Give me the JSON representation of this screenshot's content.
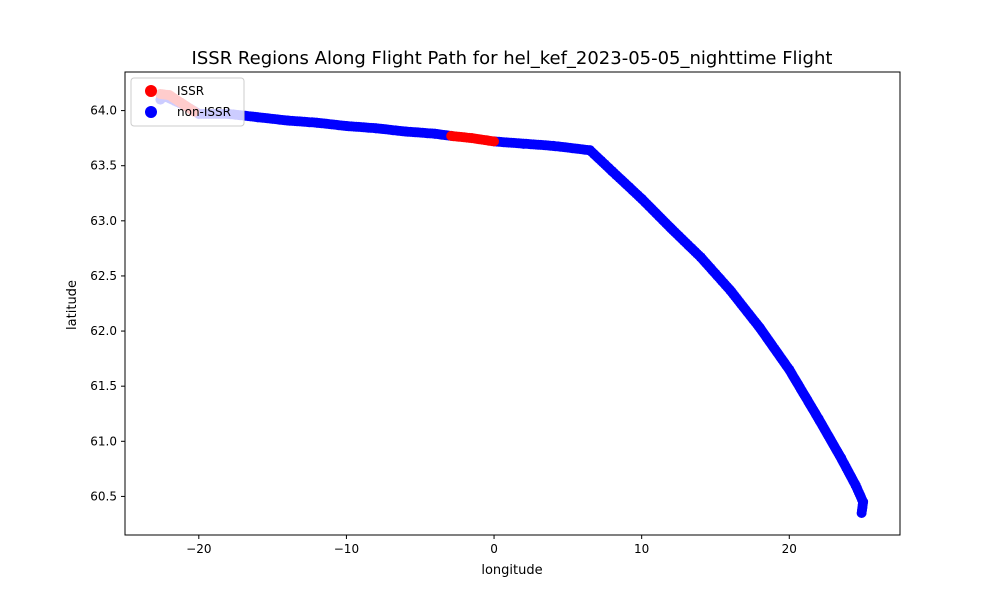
{
  "chart_data": {
    "type": "scatter",
    "title": "ISSR Regions Along Flight Path for hel_kef_2023-05-05_nighttime Flight",
    "xlabel": "longitude",
    "ylabel": "latitude",
    "xlim": [
      -25.0,
      27.5
    ],
    "ylim": [
      60.15,
      64.35
    ],
    "xticks": [
      -20,
      -10,
      0,
      10,
      20
    ],
    "yticks": [
      60.5,
      61.0,
      61.5,
      62.0,
      62.5,
      63.0,
      63.5,
      64.0
    ],
    "xtick_labels": [
      "−20",
      "−10",
      "0",
      "10",
      "20"
    ],
    "ytick_labels": [
      "60.5",
      "61.0",
      "61.5",
      "62.0",
      "62.5",
      "63.0",
      "63.5",
      "64.0"
    ],
    "grid": false,
    "legend_position": "top-left",
    "series": [
      {
        "name": "ISSR",
        "color": "#ff0000",
        "segments": [
          [
            [
              -22.6,
              64.15
            ],
            [
              -22.0,
              64.14
            ],
            [
              -21.2,
              64.07
            ],
            [
              -20.3,
              63.99
            ]
          ],
          [
            [
              -2.9,
              63.77
            ],
            [
              -1.5,
              63.75
            ],
            [
              0.0,
              63.72
            ]
          ]
        ]
      },
      {
        "name": "non-ISSR",
        "color": "#0000ff",
        "segments": [
          [
            [
              -22.6,
              64.1
            ],
            [
              -22.3,
              64.13
            ],
            [
              -21.0,
              64.05
            ],
            [
              -20.0,
              63.97
            ],
            [
              -18.0,
              63.97
            ],
            [
              -16.0,
              63.94
            ],
            [
              -14.0,
              63.91
            ],
            [
              -12.0,
              63.89
            ],
            [
              -10.0,
              63.86
            ],
            [
              -8.0,
              63.84
            ],
            [
              -6.0,
              63.81
            ],
            [
              -4.0,
              63.79
            ],
            [
              -2.9,
              63.77
            ]
          ],
          [
            [
              0.0,
              63.72
            ],
            [
              2.0,
              63.7
            ],
            [
              4.0,
              63.68
            ],
            [
              6.5,
              63.64
            ],
            [
              8.0,
              63.45
            ],
            [
              10.0,
              63.2
            ],
            [
              12.0,
              62.93
            ],
            [
              14.0,
              62.67
            ],
            [
              16.0,
              62.37
            ],
            [
              18.0,
              62.03
            ],
            [
              20.0,
              61.65
            ],
            [
              22.0,
              61.2
            ],
            [
              23.5,
              60.85
            ],
            [
              24.5,
              60.6
            ],
            [
              25.0,
              60.45
            ],
            [
              24.9,
              60.35
            ]
          ]
        ]
      }
    ]
  }
}
